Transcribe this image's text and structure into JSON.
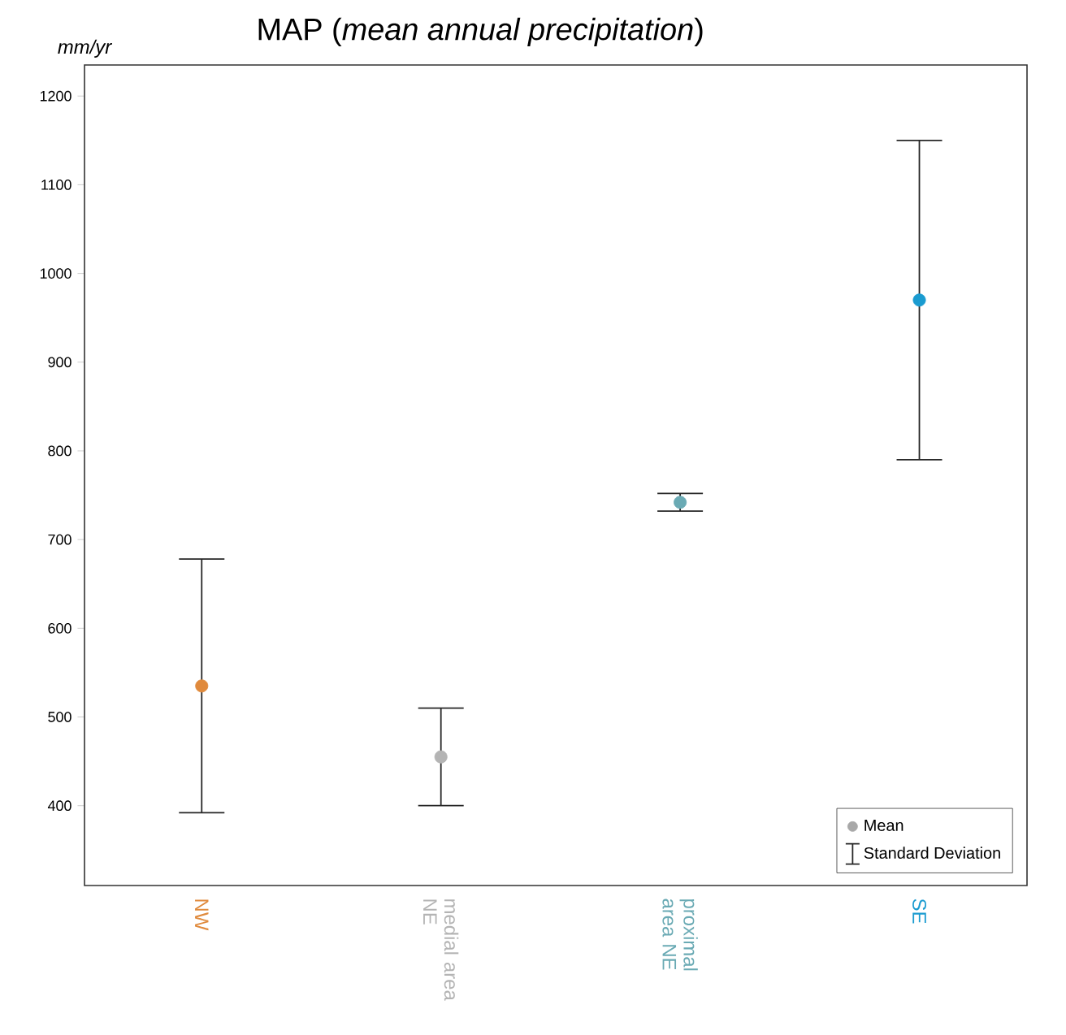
{
  "chart_data": {
    "type": "scatter",
    "title": "MAP (*mean annual precipitation*)",
    "ylabel": "mm/yr",
    "categories": [
      "NW",
      "medial area NE",
      "proximal area NE",
      "SE"
    ],
    "series": [
      {
        "name": "Mean",
        "color": "#a8a8a8",
        "colors": [
          "#e08a3c",
          "#b4b4b4",
          "#6aaab4",
          "#1a9bd0"
        ],
        "values": [
          535,
          455,
          742,
          970
        ],
        "errors": [
          143,
          55,
          10,
          180
        ]
      }
    ],
    "annotations": [
      "Standard Deviation"
    ],
    "ylim": [
      310,
      1235
    ],
    "yticks": [
      400,
      500,
      600,
      700,
      800,
      900,
      1000,
      1100,
      1200
    ],
    "legend": "bottom right",
    "grid": false
  }
}
